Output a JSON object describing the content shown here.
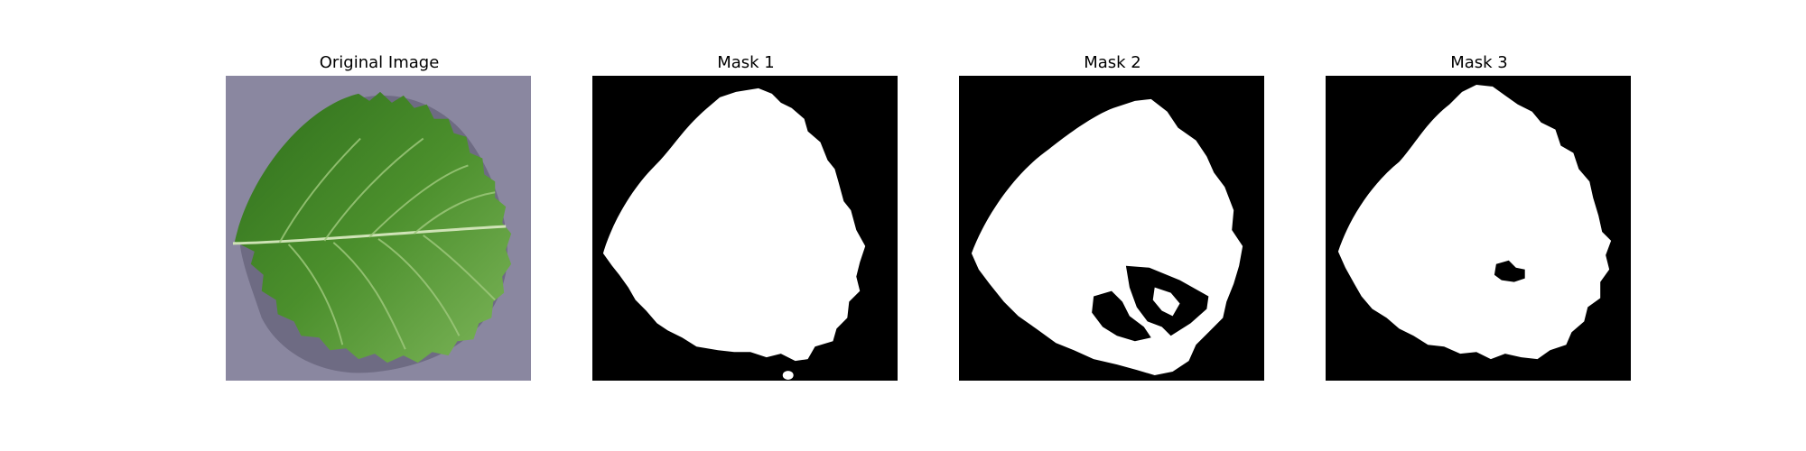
{
  "panels": [
    {
      "title": "Original Image",
      "kind": "photo",
      "subject": "strawberry-leaf"
    },
    {
      "title": "Mask 1",
      "kind": "mask"
    },
    {
      "title": "Mask 2",
      "kind": "mask"
    },
    {
      "title": "Mask 3",
      "kind": "mask"
    }
  ],
  "colors": {
    "background": "#ffffff",
    "mask_foreground": "#ffffff",
    "mask_background": "#000000",
    "photo_background": "#8a87a0",
    "leaf_dark": "#2f6f1c",
    "leaf_mid": "#4b8f2c",
    "leaf_light": "#7db55a",
    "leaf_vein": "#cfe3b6"
  }
}
